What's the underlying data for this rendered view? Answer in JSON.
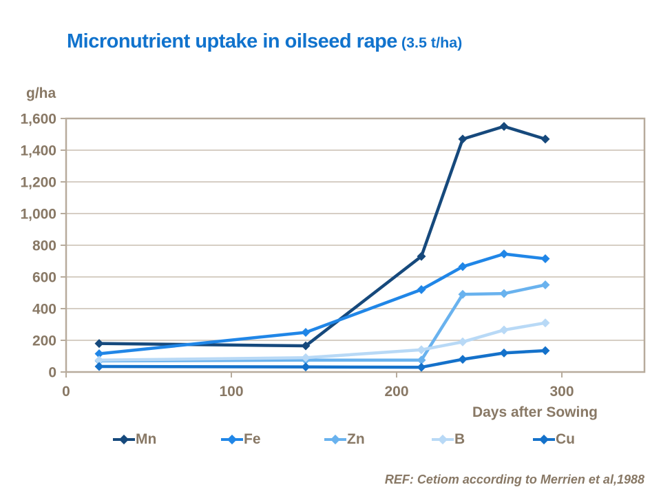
{
  "slide": {
    "title": "Micronutrient uptake in oilseed rape",
    "title_suffix": " (3.5 t/ha)",
    "reference": "REF: Cetiom according to Merrien et al,1988"
  },
  "colors": {
    "title": "#1173cd",
    "axis_text": "#887865",
    "gridline": "#c9bdb0",
    "border": "#b7ab9c",
    "background": "#ffffff"
  },
  "chart_data": {
    "type": "line",
    "title": "Micronutrient uptake in oilseed rape (3.5 t/ha)",
    "xlabel": "Days after Sowing",
    "ylabel": "g/ha",
    "xlim": [
      0,
      350
    ],
    "ylim": [
      0,
      1600
    ],
    "xticks": [
      0,
      100,
      200,
      300
    ],
    "yticks": [
      0,
      200,
      400,
      600,
      800,
      1000,
      1200,
      1400,
      1600
    ],
    "ytick_labels": [
      "0",
      "200",
      "400",
      "600",
      "800",
      "1,000",
      "1,200",
      "1,400",
      "1,600"
    ],
    "grid": "horizontal",
    "legend_position": "bottom",
    "marker": "diamond",
    "x": [
      20,
      145,
      215,
      240,
      265,
      290
    ],
    "series": [
      {
        "name": "Mn",
        "color": "#16497c",
        "values": [
          180,
          165,
          730,
          1470,
          1550,
          1470
        ]
      },
      {
        "name": "Fe",
        "color": "#2086e7",
        "values": [
          115,
          250,
          520,
          665,
          745,
          715
        ]
      },
      {
        "name": "Zn",
        "color": "#69b2ee",
        "values": [
          70,
          75,
          75,
          490,
          495,
          550
        ]
      },
      {
        "name": "B",
        "color": "#b8d9f6",
        "values": [
          75,
          90,
          140,
          190,
          265,
          310
        ]
      },
      {
        "name": "Cu",
        "color": "#1471ca",
        "values": [
          35,
          32,
          30,
          80,
          120,
          135
        ]
      }
    ]
  }
}
